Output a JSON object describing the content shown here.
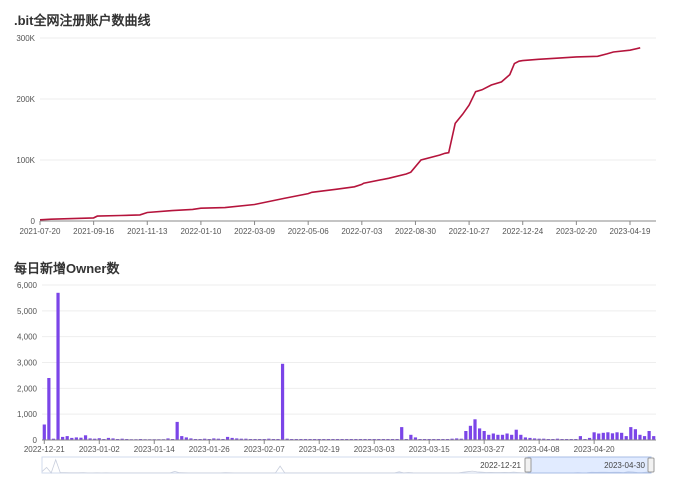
{
  "chart_data": [
    {
      "type": "line",
      "title": ".bit全网注册账户数曲线",
      "color": "#b5143c",
      "y_ticks": [
        "0",
        "100K",
        "200K",
        "300K"
      ],
      "ylim": [
        0,
        300000
      ],
      "x_tick_labels": [
        "2021-07-20",
        "2021-09-16",
        "2021-11-13",
        "2022-01-10",
        "2022-03-09",
        "2022-05-06",
        "2022-07-03",
        "2022-08-30",
        "2022-10-27",
        "2022-12-24",
        "2023-02-20",
        "2023-04-19"
      ],
      "series": [
        {
          "x": [
            "2021-07-20",
            "2021-08-01",
            "2021-09-16",
            "2021-09-20",
            "2021-10-15",
            "2021-11-05",
            "2021-11-13",
            "2021-12-10",
            "2022-01-01",
            "2022-01-10",
            "2022-02-05",
            "2022-03-09",
            "2022-04-10",
            "2022-05-06",
            "2022-05-10",
            "2022-06-05",
            "2022-06-25",
            "2022-07-03",
            "2022-07-05",
            "2022-08-01",
            "2022-08-20",
            "2022-08-25",
            "2022-09-05",
            "2022-09-25",
            "2022-10-01",
            "2022-10-05",
            "2022-10-12",
            "2022-10-20",
            "2022-10-27",
            "2022-11-03",
            "2022-11-10",
            "2022-11-20",
            "2022-12-01",
            "2022-12-10",
            "2022-12-15",
            "2022-12-20",
            "2022-12-24",
            "2023-01-10",
            "2023-02-01",
            "2023-02-20",
            "2023-03-15",
            "2023-03-25",
            "2023-04-01",
            "2023-04-19",
            "2023-04-30"
          ],
          "y": [
            2000,
            3000,
            5000,
            8000,
            9000,
            10000,
            14000,
            17000,
            19000,
            21000,
            22000,
            27000,
            37000,
            45000,
            47000,
            52000,
            56000,
            60000,
            62000,
            70000,
            77000,
            80000,
            100000,
            108000,
            111000,
            112000,
            160000,
            175000,
            190000,
            212000,
            215000,
            223000,
            228000,
            240000,
            258000,
            262000,
            263000,
            265000,
            267000,
            269000,
            270000,
            274000,
            277000,
            280000,
            284000
          ]
        }
      ]
    },
    {
      "type": "bar",
      "title": "每日新增Owner数",
      "color": "#7b45e8",
      "y_ticks": [
        "0",
        "1,000",
        "2,000",
        "3,000",
        "4,000",
        "5,000",
        "6,000"
      ],
      "ylim": [
        0,
        6000
      ],
      "x_tick_labels": [
        "2022-12-21",
        "2023-01-02",
        "2023-01-14",
        "2023-01-26",
        "2023-02-07",
        "2023-02-19",
        "2023-03-03",
        "2023-03-15",
        "2023-03-27",
        "2023-04-08",
        "2023-04-20"
      ],
      "values": [
        600,
        2400,
        50,
        5700,
        120,
        150,
        80,
        100,
        90,
        180,
        60,
        50,
        70,
        40,
        80,
        60,
        40,
        50,
        40,
        30,
        30,
        40,
        30,
        30,
        30,
        30,
        30,
        60,
        40,
        700,
        150,
        100,
        60,
        40,
        40,
        50,
        40,
        60,
        50,
        40,
        120,
        80,
        60,
        50,
        50,
        40,
        40,
        40,
        40,
        50,
        40,
        40,
        2950,
        50,
        40,
        40,
        40,
        40,
        40,
        40,
        40,
        40,
        40,
        40,
        40,
        40,
        40,
        40,
        40,
        40,
        40,
        40,
        40,
        40,
        40,
        40,
        40,
        40,
        500,
        40,
        200,
        100,
        40,
        40,
        40,
        40,
        40,
        40,
        40,
        50,
        60,
        50,
        350,
        550,
        800,
        450,
        350,
        200,
        250,
        200,
        200,
        250,
        200,
        400,
        200,
        100,
        80,
        60,
        50,
        50,
        40,
        40,
        50,
        40,
        40,
        40,
        40,
        150,
        40,
        80,
        300,
        250,
        280,
        300,
        260,
        300,
        280,
        150,
        500,
        420,
        200,
        150,
        350,
        150
      ],
      "zoom": {
        "start_label": "2022-12-21",
        "end_label": "2023-04-30"
      }
    }
  ]
}
